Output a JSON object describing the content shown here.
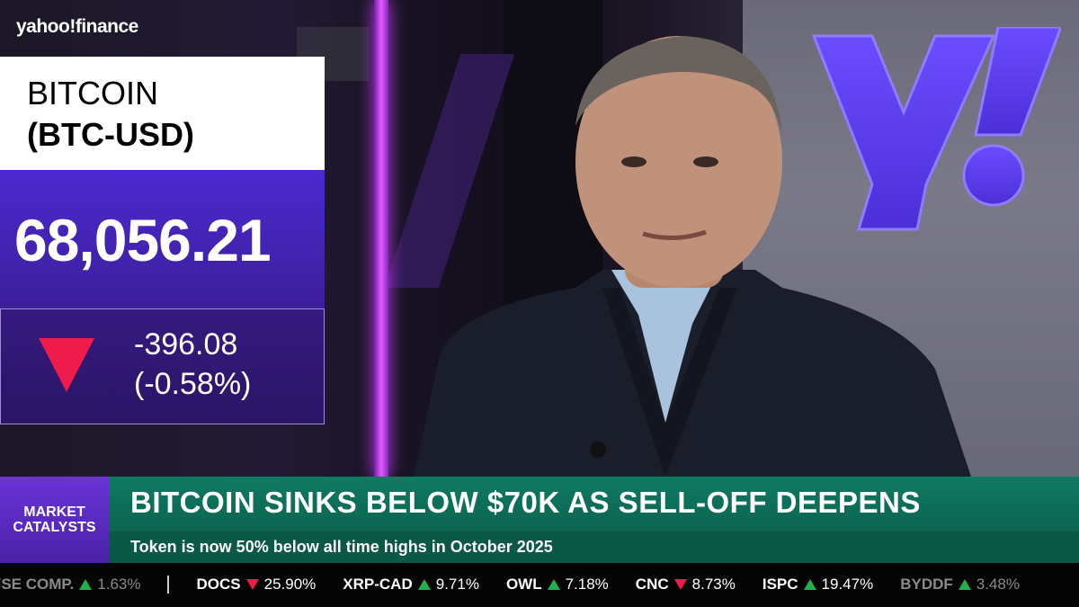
{
  "network": {
    "logo_text": "yahoo!finance"
  },
  "quote": {
    "name": "BITCOIN",
    "symbol": "(BTC-USD)",
    "price": "68,056.21",
    "change": "-396.08",
    "change_percent": "(-0.58%)",
    "direction": "down",
    "down_color": "#ee1b4b"
  },
  "lower_third": {
    "segment_line1": "MARKET",
    "segment_line2": "CATALYSTS",
    "headline": "BITCOIN SINKS BELOW $70K AS SELL-OFF DEEPENS",
    "subheadline": "Token is now 50% below all time highs in October 2025",
    "headline_color": "#0f7a62",
    "segment_color": "#6a33d8"
  },
  "ticker": [
    {
      "symbol": "YSE COMP.",
      "direction": "up",
      "change": "1.63%",
      "faded": true
    },
    {
      "symbol": "DOCS",
      "direction": "down",
      "change": "25.90%",
      "faded": false
    },
    {
      "symbol": "XRP-CAD",
      "direction": "up",
      "change": "9.71%",
      "faded": false
    },
    {
      "symbol": "OWL",
      "direction": "up",
      "change": "7.18%",
      "faded": false
    },
    {
      "symbol": "CNC",
      "direction": "down",
      "change": "8.73%",
      "faded": false
    },
    {
      "symbol": "ISPC",
      "direction": "up",
      "change": "19.47%",
      "faded": false
    },
    {
      "symbol": "BYDDF",
      "direction": "up",
      "change": "3.48%",
      "faded": true
    }
  ]
}
